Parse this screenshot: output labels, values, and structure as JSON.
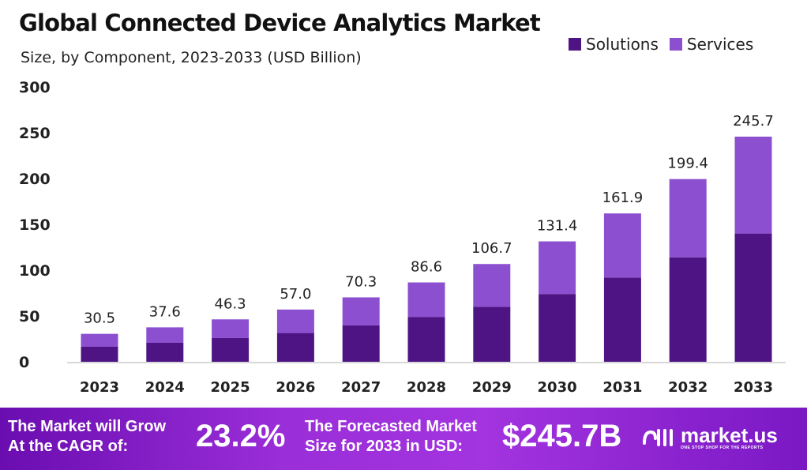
{
  "chart_data": {
    "type": "bar",
    "stacked": true,
    "title": "Global Connected Device Analytics Market",
    "subtitle": "Size, by Component, 2023-2033 (USD Billion)",
    "categories": [
      "2023",
      "2024",
      "2025",
      "2026",
      "2027",
      "2028",
      "2029",
      "2030",
      "2031",
      "2032",
      "2033"
    ],
    "series": [
      {
        "name": "Solutions",
        "color": "#4e1484",
        "values": [
          16.4,
          20.7,
          25.9,
          31.4,
          39.7,
          49.0,
          60.0,
          74.0,
          92.0,
          114.0,
          140.0
        ]
      },
      {
        "name": "Services",
        "color": "#8b4fd0",
        "values": [
          14.1,
          16.9,
          20.4,
          25.6,
          30.6,
          37.6,
          46.7,
          57.4,
          69.9,
          85.4,
          105.7
        ]
      }
    ],
    "totals": [
      "30.5",
      "37.6",
      "46.3",
      "57.0",
      "70.3",
      "86.6",
      "106.7",
      "131.4",
      "161.9",
      "199.4",
      "245.7"
    ],
    "yticks": [
      "0",
      "50",
      "100",
      "150",
      "200",
      "250",
      "300"
    ],
    "ylim": [
      0,
      300
    ],
    "grid": false,
    "legend": "top-right"
  },
  "footer": {
    "cagr_text_1": "The Market will Grow",
    "cagr_text_2": "At the CAGR of:",
    "cagr_value": "23.2%",
    "forecast_text_1": "The Forecasted Market",
    "forecast_text_2": "Size for 2033 in USD:",
    "forecast_value": "$245.7B",
    "logo_text": "market.us",
    "logo_tagline": "ONE STOP SHOP FOR THE REPORTS"
  }
}
